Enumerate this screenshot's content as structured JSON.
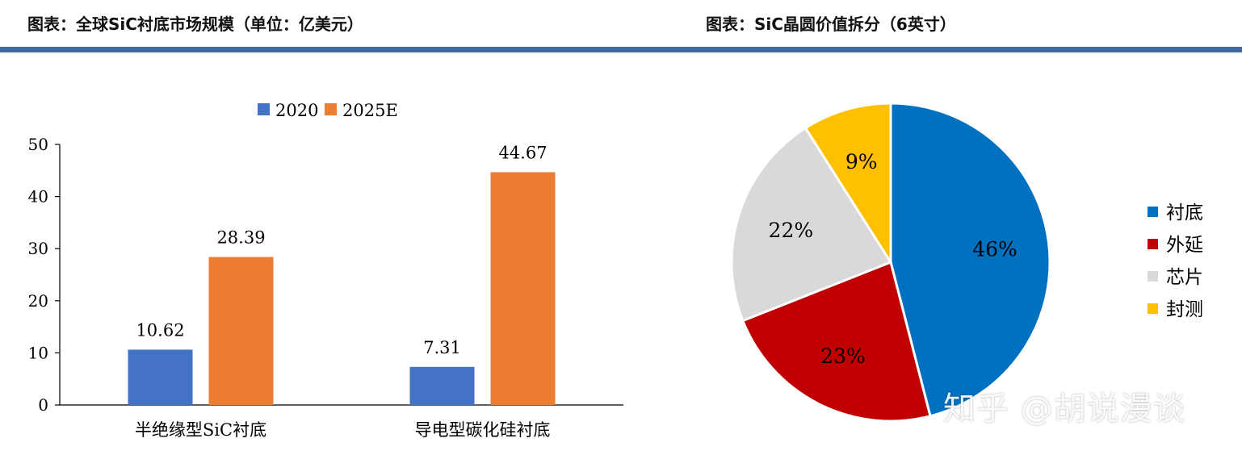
{
  "titles": {
    "left": "图表：全球SiC衬底市场规模（单位：亿美元）",
    "right": "图表：SiC晶圆价值拆分（6英寸）"
  },
  "watermark": "知乎 @胡说漫谈",
  "colors": {
    "header_rule": "#3f6aa6"
  },
  "chart_data": [
    {
      "type": "bar",
      "title": "",
      "categories": [
        "半绝缘型SiC衬底",
        "导电型碳化硅衬底"
      ],
      "series": [
        {
          "name": "2020",
          "values": [
            10.62,
            7.31
          ],
          "labels": [
            "10.62",
            "7.31"
          ],
          "color": "#4472c4"
        },
        {
          "name": "2025E",
          "values": [
            28.39,
            44.67
          ],
          "labels": [
            "28.39",
            "44.67"
          ],
          "color": "#ed7d31"
        }
      ],
      "yticks": [
        "0",
        "10",
        "20",
        "30",
        "40",
        "50"
      ],
      "ylim": [
        0,
        50
      ],
      "legend_position": "top",
      "grid": false
    },
    {
      "type": "pie",
      "title": "",
      "slices": [
        {
          "label": "衬底",
          "value": 46,
          "text": "46%",
          "color": "#0070c0"
        },
        {
          "label": "外延",
          "value": 23,
          "text": "23%",
          "color": "#c00000"
        },
        {
          "label": "芯片",
          "value": 22,
          "text": "22%",
          "color": "#d9d9d9"
        },
        {
          "label": "封测",
          "value": 9,
          "text": "9%",
          "color": "#ffc000"
        }
      ],
      "legend_position": "right"
    }
  ]
}
